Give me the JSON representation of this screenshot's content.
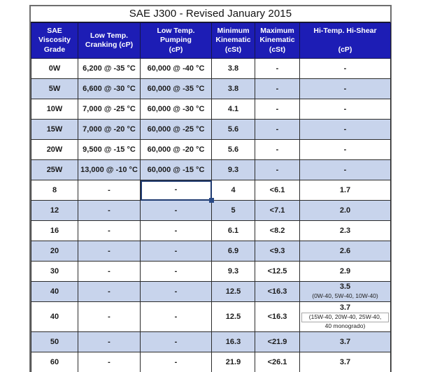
{
  "title": "SAE J300 - Revised January 2015",
  "colors": {
    "header_bg": "#1d1db5",
    "header_text": "#ffffff",
    "row_alt_bg": "#c8d4ec",
    "grid_border": "#2b2b2b",
    "outer_border": "#6e6e6e",
    "selection_border": "#1f3a70",
    "selection_handle": "#2a4a85"
  },
  "table": {
    "columns": [
      {
        "key": "grade",
        "label": "SAE\nViscosity\nGrade"
      },
      {
        "key": "cranking",
        "label": "Low Temp.\nCranking (cP)"
      },
      {
        "key": "pumping",
        "label": "Low Temp.\nPumping\n(cP)"
      },
      {
        "key": "min_kin",
        "label": "Minimum\nKinematic\n(cSt)"
      },
      {
        "key": "max_kin",
        "label": "Maximum\nKinematic\n(cSt)"
      },
      {
        "key": "hths",
        "label": "Hi-Temp. Hi-Shear\n\n(cP)"
      }
    ],
    "rows": [
      {
        "cells": [
          "0W",
          "6,200 @ -35 °C",
          "60,000 @ -40 °C",
          "3.8",
          "-",
          "-"
        ]
      },
      {
        "cells": [
          "5W",
          "6,600 @ -30 °C",
          "60,000 @ -35 °C",
          "3.8",
          "-",
          "-"
        ]
      },
      {
        "cells": [
          "10W",
          "7,000 @ -25 °C",
          "60,000 @ -30 °C",
          "4.1",
          "-",
          "-"
        ]
      },
      {
        "cells": [
          "15W",
          "7,000 @ -20 °C",
          "60,000 @ -25 °C",
          "5.6",
          "-",
          "-"
        ]
      },
      {
        "cells": [
          "20W",
          "9,500 @ -15 °C",
          "60,000 @ -20 °C",
          "5.6",
          "-",
          "-"
        ]
      },
      {
        "cells": [
          "25W",
          "13,000 @ -10 °C",
          "60,000 @ -15 °C",
          "9.3",
          "-",
          "-"
        ]
      },
      {
        "cells": [
          "8",
          "-",
          {
            "value": "-",
            "selected": true
          },
          "4",
          "<6.1",
          "1.7"
        ]
      },
      {
        "cells": [
          "12",
          "-",
          "-",
          "5",
          "<7.1",
          "2.0"
        ]
      },
      {
        "cells": [
          "16",
          "-",
          "-",
          "6.1",
          "<8.2",
          "2.3"
        ]
      },
      {
        "cells": [
          "20",
          "-",
          "-",
          "6.9",
          "<9.3",
          "2.6"
        ]
      },
      {
        "cells": [
          "30",
          "-",
          "-",
          "9.3",
          "<12.5",
          "2.9"
        ]
      },
      {
        "cells": [
          "40",
          "-",
          "-",
          "12.5",
          "<16.3",
          {
            "value": "3.5",
            "sub": "(0W-40, 5W-40, 10W-40)"
          }
        ]
      },
      {
        "cells": [
          "40",
          "-",
          "-",
          "12.5",
          "<16.3",
          {
            "value": "3.7",
            "sub_boxed": "(15W-40, 20W-40, 25W-40,",
            "sub2": "40 monogrado)"
          }
        ],
        "tall": true
      },
      {
        "cells": [
          "50",
          "-",
          "-",
          "16.3",
          "<21.9",
          "3.7"
        ]
      },
      {
        "cells": [
          "60",
          "-",
          "-",
          "21.9",
          "<26.1",
          "3.7"
        ]
      }
    ]
  }
}
